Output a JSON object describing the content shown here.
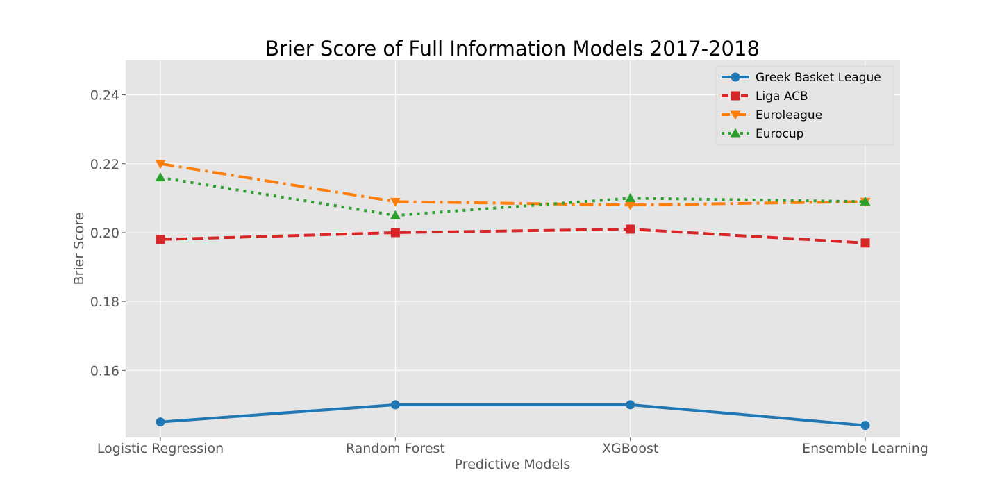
{
  "chart_data": {
    "type": "line",
    "title": "Brier Score of Full Information Models 2017-2018",
    "xlabel": "Predictive Models",
    "ylabel": "Brier Score",
    "categories": [
      "Logistic Regression",
      "Random Forest",
      "XGBoost",
      "Ensemble Learning"
    ],
    "ylim": [
      0.1405,
      0.25
    ],
    "yticks": [
      0.16,
      0.18,
      0.2,
      0.22,
      0.24
    ],
    "ytick_labels": [
      "0.16",
      "0.18",
      "0.20",
      "0.22",
      "0.24"
    ],
    "grid": true,
    "legend_position": "top-right",
    "series": [
      {
        "name": "Greek Basket League",
        "values": [
          0.145,
          0.15,
          0.15,
          0.144
        ],
        "color": "#1f77b4",
        "marker": "circle",
        "linestyle": "solid"
      },
      {
        "name": "Liga ACB",
        "values": [
          0.198,
          0.2,
          0.201,
          0.197
        ],
        "color": "#d62728",
        "marker": "square",
        "linestyle": "dashed"
      },
      {
        "name": "Euroleague",
        "values": [
          0.22,
          0.209,
          0.208,
          0.209
        ],
        "color": "#ff7f0e",
        "marker": "triangle-down",
        "linestyle": "dashdot"
      },
      {
        "name": "Eurocup",
        "values": [
          0.216,
          0.205,
          0.21,
          0.209
        ],
        "color": "#2ca02c",
        "marker": "triangle-up",
        "linestyle": "dotted"
      }
    ]
  }
}
